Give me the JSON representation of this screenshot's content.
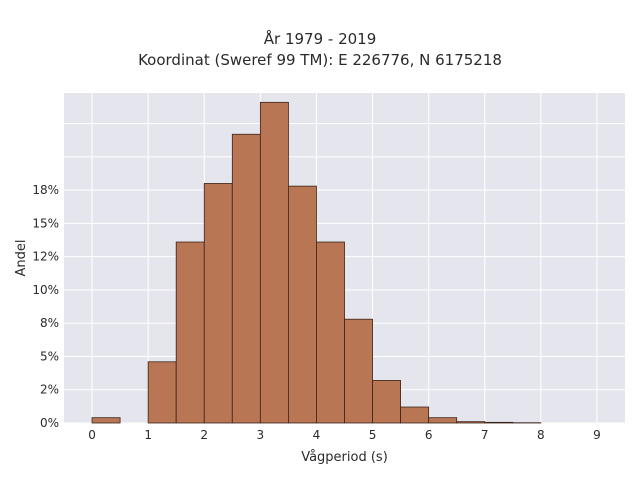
{
  "chart_data": {
    "type": "bar",
    "title": "År 1979 - 2019",
    "subtitle": "Koordinat (Sweref 99 TM): E 226776, N 6175218",
    "xlabel": "Vågperiod (s)",
    "ylabel": "Andel",
    "bin_width": 0.5,
    "bin_starts": [
      0,
      0.5,
      1,
      1.5,
      2,
      2.5,
      3,
      3.5,
      4,
      4.5,
      5,
      5.5,
      6,
      6.5,
      7,
      7.5
    ],
    "values": [
      0.004,
      0,
      0.046,
      0.136,
      0.18,
      0.217,
      0.241,
      0.178,
      0.136,
      0.078,
      0.032,
      0.012,
      0.004,
      0.001,
      0.0005,
      0.0002
    ],
    "xlim": [
      -0.5,
      9.5
    ],
    "ylim": [
      0,
      0.248
    ],
    "x_ticks": [
      0,
      1,
      2,
      3,
      4,
      5,
      6,
      7,
      8,
      9
    ],
    "y_ticks": [
      0,
      0.025,
      0.05,
      0.075,
      0.1,
      0.125,
      0.15,
      0.175,
      0.2,
      0.225
    ],
    "y_tick_labels": [
      "0%",
      "2%",
      "5%",
      "8%",
      "10%",
      "12%",
      "15%",
      "18%",
      "",
      ""
    ],
    "grid": true,
    "colors": {
      "bar": "#b87654",
      "bar_edge": "#3a2418",
      "plot_bg": "#e5e5ee",
      "grid": "#ffffff"
    }
  }
}
